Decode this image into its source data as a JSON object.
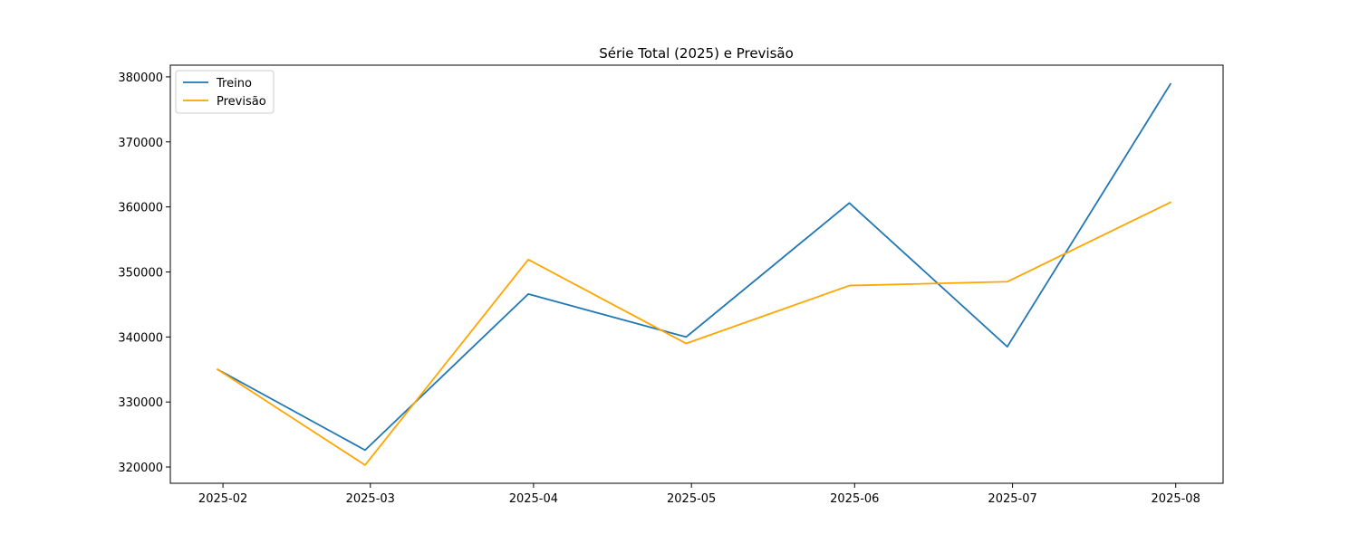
{
  "chart_data": {
    "type": "line",
    "title": "Série Total (2025) e Previsão",
    "xlabel": "",
    "ylabel": "",
    "x_ticks": [
      "2025-02",
      "2025-03",
      "2025-04",
      "2025-05",
      "2025-06",
      "2025-07",
      "2025-08"
    ],
    "y_ticks": [
      "320000",
      "330000",
      "340000",
      "350000",
      "360000",
      "370000",
      "380000"
    ],
    "ylim": [
      317500,
      381800
    ],
    "xlim": [
      "2025-01-22",
      "2025-08-10"
    ],
    "grid": false,
    "legend_position": "top-left",
    "series": [
      {
        "name": "Treino",
        "color": "#1f77b4",
        "x": [
          "2025-01-31",
          "2025-02-28",
          "2025-03-31",
          "2025-04-30",
          "2025-05-31",
          "2025-06-30",
          "2025-07-31"
        ],
        "y": [
          335000,
          322600,
          346600,
          340000,
          360600,
          338500,
          378900
        ]
      },
      {
        "name": "Previsão",
        "color": "#ffa500",
        "x": [
          "2025-01-31",
          "2025-02-28",
          "2025-03-31",
          "2025-04-30",
          "2025-05-31",
          "2025-06-30",
          "2025-07-31"
        ],
        "y": [
          335000,
          320300,
          351900,
          339000,
          347900,
          348500,
          360700
        ]
      }
    ]
  }
}
